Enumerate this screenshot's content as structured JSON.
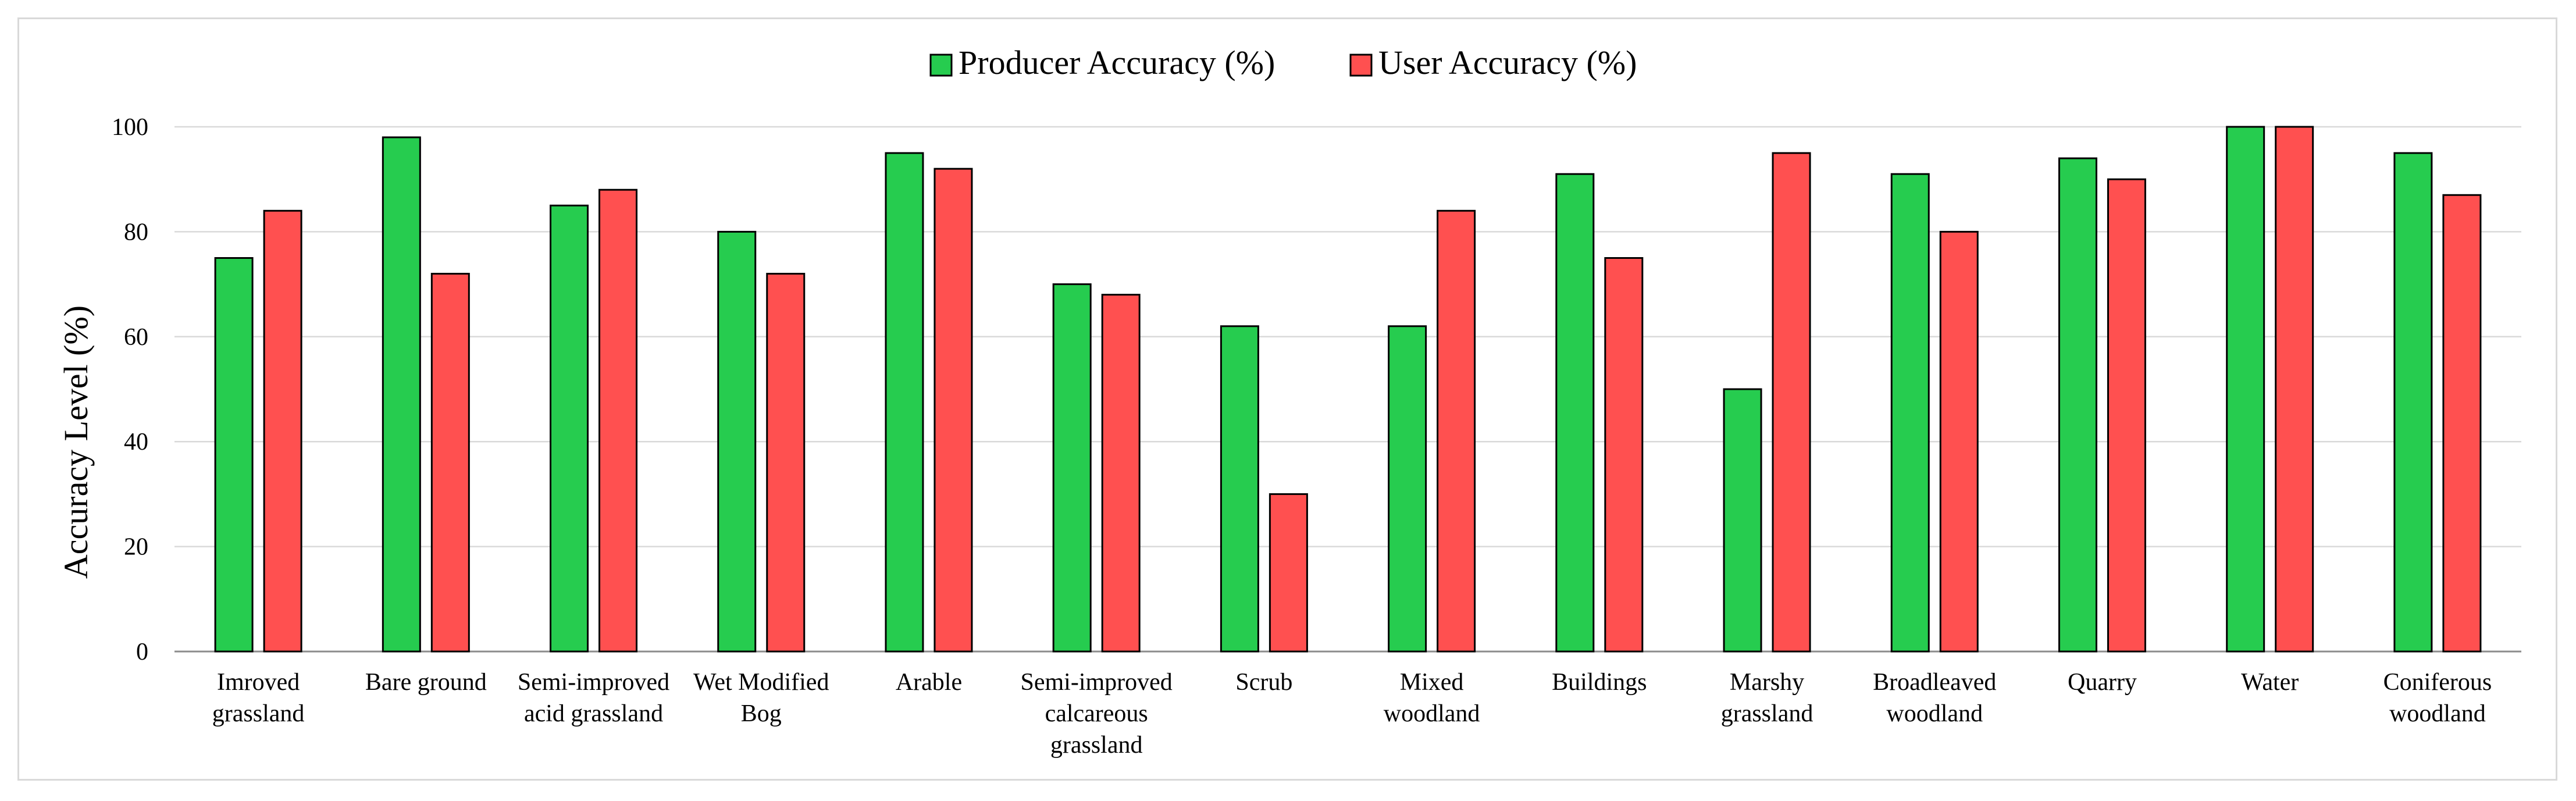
{
  "chart_data": {
    "type": "bar",
    "title": "",
    "xlabel": "",
    "ylabel": "Accuracy Level (%)",
    "ylim": [
      0,
      100
    ],
    "yticks": [
      0,
      20,
      40,
      60,
      80,
      100
    ],
    "grid": true,
    "legend_position": "top-center",
    "categories": [
      [
        "Imroved",
        "grassland"
      ],
      [
        "Bare ground"
      ],
      [
        "Semi-improved",
        "acid grassland"
      ],
      [
        "Wet Modified",
        "Bog"
      ],
      [
        "Arable"
      ],
      [
        "Semi-improved",
        "calcareous",
        "grassland"
      ],
      [
        "Scrub"
      ],
      [
        "Mixed",
        "woodland"
      ],
      [
        "Buildings"
      ],
      [
        "Marshy",
        "grassland"
      ],
      [
        "Broadleaved",
        "woodland"
      ],
      [
        "Quarry"
      ],
      [
        "Water"
      ],
      [
        "Coniferous",
        "woodland"
      ]
    ],
    "series": [
      {
        "name": "Producer Accuracy (%)",
        "color": "#26cc4f",
        "values": [
          75,
          98,
          85,
          80,
          95,
          70,
          62,
          62,
          91,
          50,
          91,
          94,
          100,
          95
        ]
      },
      {
        "name": "User Accuracy (%)",
        "color": "#ff5050",
        "values": [
          84,
          72,
          88,
          72,
          92,
          68,
          30,
          84,
          75,
          95,
          80,
          90,
          100,
          87
        ]
      }
    ]
  }
}
